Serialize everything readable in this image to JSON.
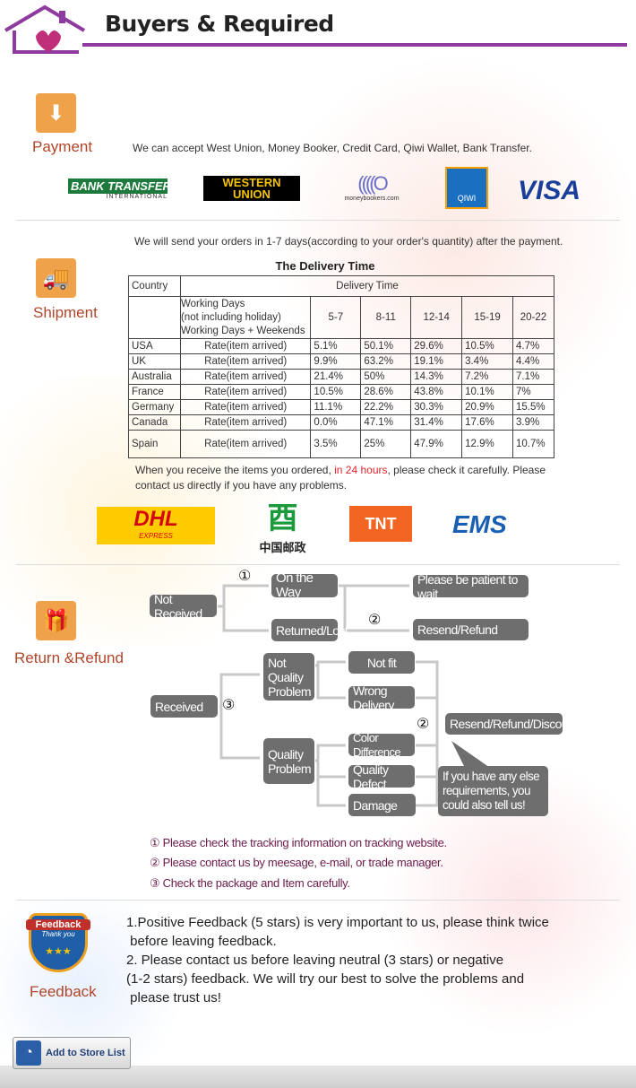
{
  "header": {
    "title": "Buyers & Required"
  },
  "payment": {
    "label": "Payment",
    "text": "We can accept West Union, Money Booker, Credit Card, Qiwi Wallet, Bank Transfer.",
    "logos": {
      "bank_main": "BANK TRANSFER",
      "bank_sub": "INTERNATIONAL",
      "wu": "WESTERN UNION",
      "mb": "moneybookers.com",
      "qiwi": "QIWI",
      "visa": "VISA"
    }
  },
  "shipment": {
    "label": "Shipment",
    "text": "We will send your orders in 1-7 days(according to your order's quantity) after the payment.",
    "table_title": "The Delivery Time",
    "table": {
      "country_header": "Country",
      "delivery_header": "Delivery Time",
      "days_header": [
        "Working Days",
        "(not including holiday)",
        "Working Days + Weekends"
      ],
      "ranges": [
        "5-7",
        "8-11",
        "12-14",
        "15-19",
        "20-22"
      ],
      "rows": [
        {
          "country": "USA",
          "label": "Rate(item arrived)",
          "values": [
            "5.1%",
            "50.1%",
            "29.6%",
            "10.5%",
            "4.7%"
          ]
        },
        {
          "country": "UK",
          "label": "Rate(item arrived)",
          "values": [
            "9.9%",
            "63.2%",
            "19.1%",
            "3.4%",
            "4.4%"
          ]
        },
        {
          "country": "Australia",
          "label": "Rate(item arrived)",
          "values": [
            "21.4%",
            "50%",
            "14.3%",
            "7.2%",
            "7.1%"
          ]
        },
        {
          "country": "France",
          "label": "Rate(item arrived)",
          "values": [
            "10.5%",
            "28.6%",
            "43.8%",
            "10.1%",
            "7%"
          ]
        },
        {
          "country": "Germany",
          "label": "Rate(item arrived)",
          "values": [
            "11.1%",
            "22.2%",
            "30.3%",
            "20.9%",
            "15.5%"
          ]
        },
        {
          "country": "Canada",
          "label": "Rate(item arrived)",
          "values": [
            "0.0%",
            "47.1%",
            "31.4%",
            "17.6%",
            "3.9%"
          ]
        },
        {
          "country": "Spain",
          "label": "Rate(item arrived)",
          "values": [
            "3.5%",
            "25%",
            "47.9%",
            "12.9%",
            "10.7%"
          ]
        }
      ]
    },
    "notice_a": "When you receive the items you ordered, ",
    "notice_highlight": "in 24 hours",
    "notice_b": ", please check it carefully. Please",
    "notice_c": "contact us directly if you have any problems.",
    "highlight_color": "#e0242a",
    "carriers": {
      "dhl": "DHL",
      "dhl_sub": "EXPRESS",
      "chinapost": "中国邮政",
      "tnt": "TNT",
      "ems": "EMS"
    }
  },
  "refund": {
    "label": "Return &Refund",
    "flow": {
      "not_received": "Not Received",
      "on_the_way": "On the Way",
      "returned_lost": "Returned/Lost",
      "patient": "Please be patient to wait",
      "resend_refund": "Resend/Refund",
      "received": "Received",
      "not_quality": "Not Quality Problem",
      "quality": "Quality Problem",
      "not_fit": "Not fit",
      "wrong_delivery": "Wrong Delivery",
      "color_diff": "Color Difference",
      "quality_defect": "Quality Defect",
      "damage": "Damage",
      "resend_discount": "Resend/Refund/Discount",
      "else": "If you have any else requirements, you could also tell us!",
      "n1": "①",
      "n2": "②",
      "n3": "③"
    },
    "notes": [
      "① Please check the tracking information on tracking website.",
      "② Please contact us by meesage, e-mail, or trade manager.",
      "③ Check the package and Item carefully."
    ]
  },
  "feedback": {
    "label": "Feedback",
    "badge_title": "Feedback",
    "badge_sub": "Thank you",
    "lines": [
      "1.Positive Feedback (5 stars) is very important to us, please think twice",
      " before leaving feedback.",
      "2. Please contact us before leaving neutral (3 stars) or negative",
      "(1-2 stars) feedback. We will try our best to solve the problems and",
      " please trust us!"
    ]
  },
  "store_button": {
    "label": "Add to Store List"
  },
  "colors": {
    "accent": "#8e3a9e",
    "icon": "#f0a24a",
    "section_label": "#b0452a",
    "flow_box": "#6e6e6e",
    "note": "#6b1a4a"
  }
}
